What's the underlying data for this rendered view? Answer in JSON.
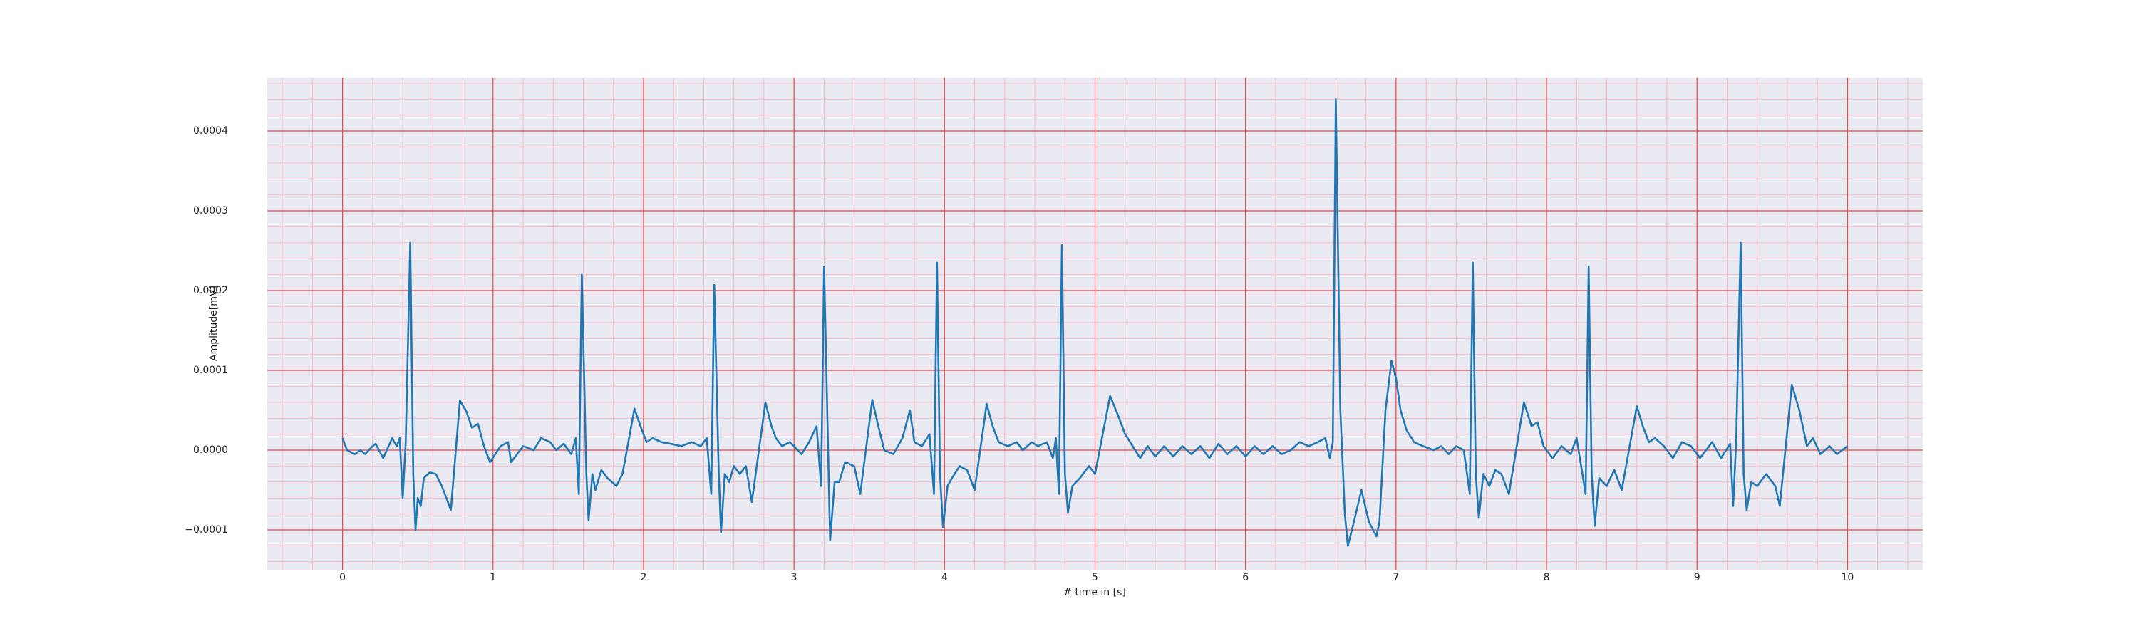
{
  "chart_data": {
    "type": "line",
    "x_label": "# time in [s]",
    "y_label": "Amplitude[mV]",
    "color": "#1f77b4",
    "xlim": [
      -0.5,
      10.5
    ],
    "ylim": [
      -0.00015,
      0.000467
    ],
    "xticks": [
      0,
      1,
      2,
      3,
      4,
      5,
      6,
      7,
      8,
      9,
      10
    ],
    "yticks": [
      {
        "value": -0.0001,
        "label": "−0.0001"
      },
      {
        "value": 0,
        "label": "0.0000"
      },
      0.0001,
      0.0002,
      0.0003,
      0.0004
    ],
    "grid": true,
    "minor_grid": true,
    "x": [
      0.0,
      0.03,
      0.08,
      0.12,
      0.15,
      0.2,
      0.22,
      0.27,
      0.33,
      0.36,
      0.38,
      0.4,
      0.42,
      0.45,
      0.47,
      0.485,
      0.5,
      0.52,
      0.54,
      0.58,
      0.62,
      0.66,
      0.72,
      0.78,
      0.82,
      0.86,
      0.9,
      0.94,
      0.98,
      1.05,
      1.1,
      1.12,
      1.2,
      1.27,
      1.32,
      1.38,
      1.42,
      1.47,
      1.52,
      1.55,
      1.57,
      1.59,
      1.62,
      1.635,
      1.66,
      1.68,
      1.72,
      1.76,
      1.82,
      1.86,
      1.94,
      1.98,
      2.02,
      2.06,
      2.12,
      2.18,
      2.25,
      2.32,
      2.38,
      2.42,
      2.45,
      2.47,
      2.5,
      2.515,
      2.54,
      2.57,
      2.6,
      2.64,
      2.68,
      2.72,
      2.81,
      2.85,
      2.88,
      2.92,
      2.97,
      3.0,
      3.05,
      3.1,
      3.15,
      3.18,
      3.2,
      3.23,
      3.24,
      3.27,
      3.3,
      3.34,
      3.4,
      3.44,
      3.52,
      3.56,
      3.6,
      3.66,
      3.72,
      3.77,
      3.8,
      3.85,
      3.9,
      3.93,
      3.95,
      3.97,
      3.99,
      4.02,
      4.05,
      4.1,
      4.15,
      4.2,
      4.28,
      4.32,
      4.36,
      4.42,
      4.48,
      4.52,
      4.58,
      4.62,
      4.68,
      4.72,
      4.74,
      4.76,
      4.78,
      4.8,
      4.82,
      4.85,
      4.9,
      4.96,
      5.0,
      5.1,
      5.15,
      5.2,
      5.25,
      5.3,
      5.35,
      5.4,
      5.46,
      5.52,
      5.58,
      5.64,
      5.7,
      5.76,
      5.82,
      5.88,
      5.94,
      6.0,
      6.06,
      6.12,
      6.18,
      6.24,
      6.3,
      6.36,
      6.42,
      6.48,
      6.53,
      6.56,
      6.58,
      6.6,
      6.63,
      6.66,
      6.68,
      6.72,
      6.77,
      6.82,
      6.87,
      6.89,
      6.93,
      6.97,
      7.0,
      7.03,
      7.07,
      7.12,
      7.18,
      7.25,
      7.3,
      7.35,
      7.4,
      7.45,
      7.49,
      7.51,
      7.53,
      7.55,
      7.58,
      7.62,
      7.66,
      7.7,
      7.75,
      7.85,
      7.9,
      7.94,
      7.98,
      8.04,
      8.1,
      8.16,
      8.2,
      8.26,
      8.28,
      8.3,
      8.32,
      8.35,
      8.4,
      8.45,
      8.5,
      8.6,
      8.64,
      8.68,
      8.72,
      8.78,
      8.84,
      8.9,
      8.96,
      9.02,
      9.1,
      9.16,
      9.22,
      9.24,
      9.26,
      9.29,
      9.31,
      9.33,
      9.36,
      9.4,
      9.46,
      9.52,
      9.55,
      9.63,
      9.68,
      9.73,
      9.77,
      9.82,
      9.88,
      9.93,
      10.0
    ],
    "values": [
      1.5e-05,
      0.0,
      -5e-06,
      0.0,
      -5e-06,
      5e-06,
      8e-06,
      -1e-05,
      1.5e-05,
      5e-06,
      1.5e-05,
      -6e-05,
      1e-05,
      0.00026,
      -3e-05,
      -0.0001,
      -6e-05,
      -7e-05,
      -3.5e-05,
      -2.8e-05,
      -3e-05,
      -4.5e-05,
      -7.5e-05,
      6.2e-05,
      5e-05,
      2.8e-05,
      3.3e-05,
      5e-06,
      -1.5e-05,
      5e-06,
      1e-05,
      -1.5e-05,
      5e-06,
      0.0,
      1.5e-05,
      1e-05,
      0.0,
      8e-06,
      -5e-06,
      1.5e-05,
      -5.5e-05,
      0.00022,
      -3e-05,
      -8.8e-05,
      -3e-05,
      -5e-05,
      -2.5e-05,
      -3.5e-05,
      -4.5e-05,
      -3e-05,
      5.2e-05,
      3e-05,
      1e-05,
      1.5e-05,
      1e-05,
      8e-06,
      5e-06,
      1e-05,
      5e-06,
      1.5e-05,
      -5.5e-05,
      0.000207,
      -3e-05,
      -0.000103,
      -3e-05,
      -4e-05,
      -2e-05,
      -3e-05,
      -2e-05,
      -6.5e-05,
      6e-05,
      3e-05,
      1.5e-05,
      5e-06,
      1e-05,
      5e-06,
      -5e-06,
      1e-05,
      3e-05,
      -4.5e-05,
      0.00023,
      -3e-05,
      -0.000113,
      -4e-05,
      -4e-05,
      -1.5e-05,
      -2e-05,
      -5.5e-05,
      6.3e-05,
      3e-05,
      0.0,
      -5e-06,
      1.5e-05,
      5e-05,
      1e-05,
      5e-06,
      2e-05,
      -5.5e-05,
      0.000235,
      -3e-05,
      -9.7e-05,
      -4.5e-05,
      -3.5e-05,
      -2e-05,
      -2.5e-05,
      -5e-05,
      5.8e-05,
      3e-05,
      1e-05,
      5e-06,
      1e-05,
      0.0,
      1e-05,
      5e-06,
      1e-05,
      -1e-05,
      1.5e-05,
      -5.5e-05,
      0.000257,
      -3e-05,
      -7.8e-05,
      -4.5e-05,
      -3.5e-05,
      -2e-05,
      -3e-05,
      6.8e-05,
      4.5e-05,
      2e-05,
      5e-06,
      -1e-05,
      5e-06,
      -8e-06,
      5e-06,
      -8e-06,
      5e-06,
      -5e-06,
      5e-06,
      -1e-05,
      8e-06,
      -5e-06,
      5e-06,
      -8e-06,
      5e-06,
      -5e-06,
      5e-06,
      -5e-06,
      0.0,
      1e-05,
      5e-06,
      1e-05,
      1.5e-05,
      -1e-05,
      1e-05,
      0.00044,
      5e-05,
      -8e-05,
      -0.00012,
      -9e-05,
      -5e-05,
      -9e-05,
      -0.000108,
      -9e-05,
      5e-05,
      0.000112,
      9e-05,
      5e-05,
      2.5e-05,
      1e-05,
      5e-06,
      0.0,
      5e-06,
      -5e-06,
      5e-06,
      0.0,
      -5.5e-05,
      0.000235,
      -3e-05,
      -8.5e-05,
      -3e-05,
      -4.5e-05,
      -2.5e-05,
      -3e-05,
      -5.5e-05,
      6e-05,
      3e-05,
      3.5e-05,
      5e-06,
      -1e-05,
      5e-06,
      -5e-06,
      1.5e-05,
      -5.5e-05,
      0.00023,
      -3e-05,
      -9.5e-05,
      -3.5e-05,
      -4.5e-05,
      -2.5e-05,
      -5e-05,
      5.5e-05,
      3e-05,
      1e-05,
      1.5e-05,
      5e-06,
      -1e-05,
      1e-05,
      5e-06,
      -1e-05,
      1e-05,
      -1e-05,
      8e-06,
      -7e-05,
      1e-05,
      0.00026,
      -3e-05,
      -7.5e-05,
      -4e-05,
      -4.5e-05,
      -3e-05,
      -4.5e-05,
      -7e-05,
      8.2e-05,
      5e-05,
      5e-06,
      1.5e-05,
      -5e-06,
      5e-06,
      -5e-06,
      5e-06
    ]
  }
}
